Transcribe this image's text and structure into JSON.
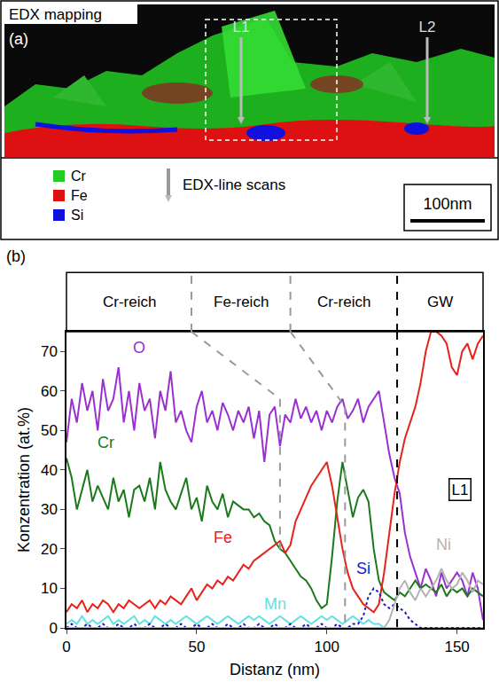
{
  "panel_a": {
    "title": "EDX mapping",
    "letter": "(a)",
    "scans": [
      "L1",
      "L2"
    ],
    "legend": [
      {
        "label": "Cr",
        "color": "#22cc22"
      },
      {
        "label": "Fe",
        "color": "#dd1111"
      },
      {
        "label": "Si",
        "color": "#1111dd"
      }
    ],
    "arrow_label": "EDX-line scans",
    "scale_bar": "100nm"
  },
  "chart_data": {
    "type": "line",
    "panel_letter": "(b)",
    "xlabel": "Distanz (nm)",
    "ylabel": "Konzentration (at.%)",
    "xlim": [
      0,
      160
    ],
    "ylim": [
      0,
      75
    ],
    "xticks": [
      0,
      50,
      100,
      150
    ],
    "yticks": [
      0,
      10,
      20,
      30,
      40,
      50,
      60,
      70
    ],
    "grid": false,
    "regions": [
      "Cr-reich",
      "Fe-reich",
      "Cr-reich",
      "GW"
    ],
    "boundaries": [
      {
        "x_top": 48,
        "x": 82,
        "y_top": 58,
        "y_bottom": 20,
        "color": "gray",
        "line_style": "dashed"
      },
      {
        "x_top": 86,
        "x": 107,
        "y_top": 56,
        "y_bottom": 0,
        "color": "gray",
        "line_style": "dashed"
      },
      {
        "x_top": 127,
        "x": 127,
        "y_top": 75,
        "y_bottom": 0,
        "color": "black",
        "line_style": "dashed"
      }
    ],
    "annotations": [
      {
        "text": "L1",
        "x": 151,
        "y": 35
      }
    ],
    "x": [
      0,
      2,
      4,
      6,
      8,
      10,
      12,
      14,
      16,
      18,
      20,
      22,
      24,
      26,
      28,
      30,
      32,
      34,
      36,
      38,
      40,
      42,
      44,
      46,
      48,
      50,
      52,
      54,
      56,
      58,
      60,
      62,
      64,
      66,
      68,
      70,
      72,
      74,
      76,
      78,
      80,
      82,
      84,
      86,
      88,
      90,
      92,
      94,
      96,
      98,
      100,
      102,
      104,
      106,
      108,
      110,
      112,
      114,
      116,
      118,
      120,
      122,
      124,
      126,
      128,
      130,
      132,
      134,
      136,
      138,
      140,
      142,
      144,
      146,
      148,
      150,
      152,
      154,
      156,
      158,
      160
    ],
    "series": [
      {
        "name": "O",
        "color": "#9b30d0",
        "label_x": 28,
        "label_y": 71,
        "values": [
          47,
          58,
          52,
          62,
          55,
          60,
          50,
          63,
          55,
          58,
          66,
          52,
          60,
          50,
          62,
          55,
          58,
          48,
          60,
          55,
          65,
          52,
          55,
          50,
          47,
          56,
          60,
          52,
          55,
          50,
          57,
          54,
          50,
          55,
          52,
          56,
          48,
          55,
          42,
          54,
          56,
          46,
          54,
          52,
          58,
          53,
          56,
          52,
          55,
          50,
          55,
          52,
          56,
          58,
          53,
          55,
          58,
          52,
          56,
          58,
          60,
          52,
          44,
          38,
          34,
          24,
          18,
          14,
          10,
          15,
          12,
          8,
          14,
          10,
          12,
          14,
          12,
          8,
          14,
          10,
          2
        ]
      },
      {
        "name": "Cr",
        "color": "#1a7a1a",
        "label_x": 15,
        "label_y": 47,
        "values": [
          43,
          38,
          30,
          35,
          40,
          32,
          36,
          33,
          30,
          38,
          32,
          35,
          28,
          35,
          36,
          32,
          38,
          30,
          42,
          35,
          32,
          30,
          34,
          38,
          30,
          33,
          27,
          36,
          32,
          30,
          34,
          28,
          32,
          31,
          30,
          30,
          28,
          29,
          27,
          26,
          22,
          20,
          19,
          17,
          15,
          13,
          12,
          10,
          7,
          5,
          6,
          18,
          32,
          42,
          35,
          28,
          33,
          35,
          32,
          20,
          12,
          9,
          8,
          7,
          9,
          8,
          10,
          12,
          10,
          11,
          10,
          9,
          11,
          8,
          10,
          9,
          10,
          8,
          10,
          9,
          8
        ]
      },
      {
        "name": "Fe",
        "color": "#e8211a",
        "label_x": 60,
        "label_y": 23,
        "values": [
          4,
          6,
          5,
          7,
          4,
          6,
          5,
          7,
          6,
          4,
          6,
          5,
          7,
          6,
          5,
          6,
          7,
          5,
          7,
          6,
          8,
          7,
          6,
          8,
          10,
          7,
          9,
          11,
          10,
          12,
          11,
          13,
          12,
          14,
          16,
          15,
          17,
          18,
          19,
          20,
          21,
          22,
          19,
          21,
          27,
          30,
          33,
          36,
          38,
          40,
          42,
          36,
          28,
          20,
          14,
          10,
          8,
          6,
          5,
          4,
          6,
          14,
          24,
          34,
          42,
          48,
          52,
          56,
          62,
          70,
          75,
          75,
          74,
          72,
          66,
          64,
          70,
          72,
          68,
          72,
          74
        ]
      },
      {
        "name": "Mn",
        "color": "#66e0e0",
        "label_x": 80,
        "label_y": 6,
        "values": [
          1,
          2,
          1,
          3,
          1,
          2,
          1,
          2,
          3,
          1,
          2,
          1,
          2,
          3,
          1,
          2,
          1,
          3,
          2,
          1,
          2,
          1,
          2,
          3,
          2,
          1,
          2,
          3,
          2,
          1,
          2,
          3,
          2,
          1,
          2,
          3,
          2,
          3,
          2,
          1,
          2,
          3,
          2,
          1,
          2,
          3,
          2,
          1,
          2,
          3,
          2,
          3,
          2,
          1,
          2,
          3,
          2,
          1,
          2,
          1,
          1,
          0,
          0,
          0,
          0,
          0,
          0,
          0,
          0,
          0,
          0,
          0,
          0,
          0,
          0,
          0,
          0,
          0,
          0,
          0,
          0
        ]
      },
      {
        "name": "Si",
        "color": "#1a1acc",
        "line_style": "dotted",
        "label_x": 114,
        "label_y": 15,
        "values": [
          0,
          1,
          0,
          0,
          1,
          0,
          0,
          1,
          0,
          0,
          1,
          0,
          0,
          1,
          0,
          0,
          1,
          0,
          0,
          1,
          0,
          0,
          1,
          0,
          0,
          1,
          0,
          0,
          1,
          0,
          0,
          1,
          0,
          0,
          1,
          0,
          0,
          1,
          0,
          0,
          1,
          0,
          0,
          1,
          0,
          0,
          1,
          0,
          0,
          1,
          0,
          0,
          1,
          0,
          0,
          1,
          1,
          3,
          8,
          10,
          9,
          6,
          5,
          6,
          5,
          4,
          2,
          1,
          0,
          0,
          0,
          0,
          0,
          0,
          0,
          0,
          0,
          0,
          0,
          0,
          0
        ]
      },
      {
        "name": "Ni",
        "color": "#b3b3b3",
        "label_x": 145,
        "label_y": 21,
        "values": [
          0,
          0,
          0,
          0,
          0,
          0,
          0,
          0,
          0,
          0,
          0,
          0,
          0,
          0,
          0,
          0,
          0,
          0,
          0,
          0,
          0,
          0,
          0,
          0,
          0,
          0,
          0,
          0,
          0,
          0,
          0,
          0,
          0,
          0,
          0,
          0,
          0,
          0,
          0,
          0,
          0,
          0,
          0,
          0,
          0,
          0,
          0,
          0,
          0,
          0,
          0,
          0,
          0,
          0,
          0,
          0,
          0,
          0,
          0,
          0,
          0,
          0,
          2,
          6,
          10,
          12,
          9,
          7,
          10,
          8,
          10,
          12,
          15,
          12,
          10,
          11,
          14,
          12,
          9,
          12,
          11
        ]
      }
    ]
  }
}
